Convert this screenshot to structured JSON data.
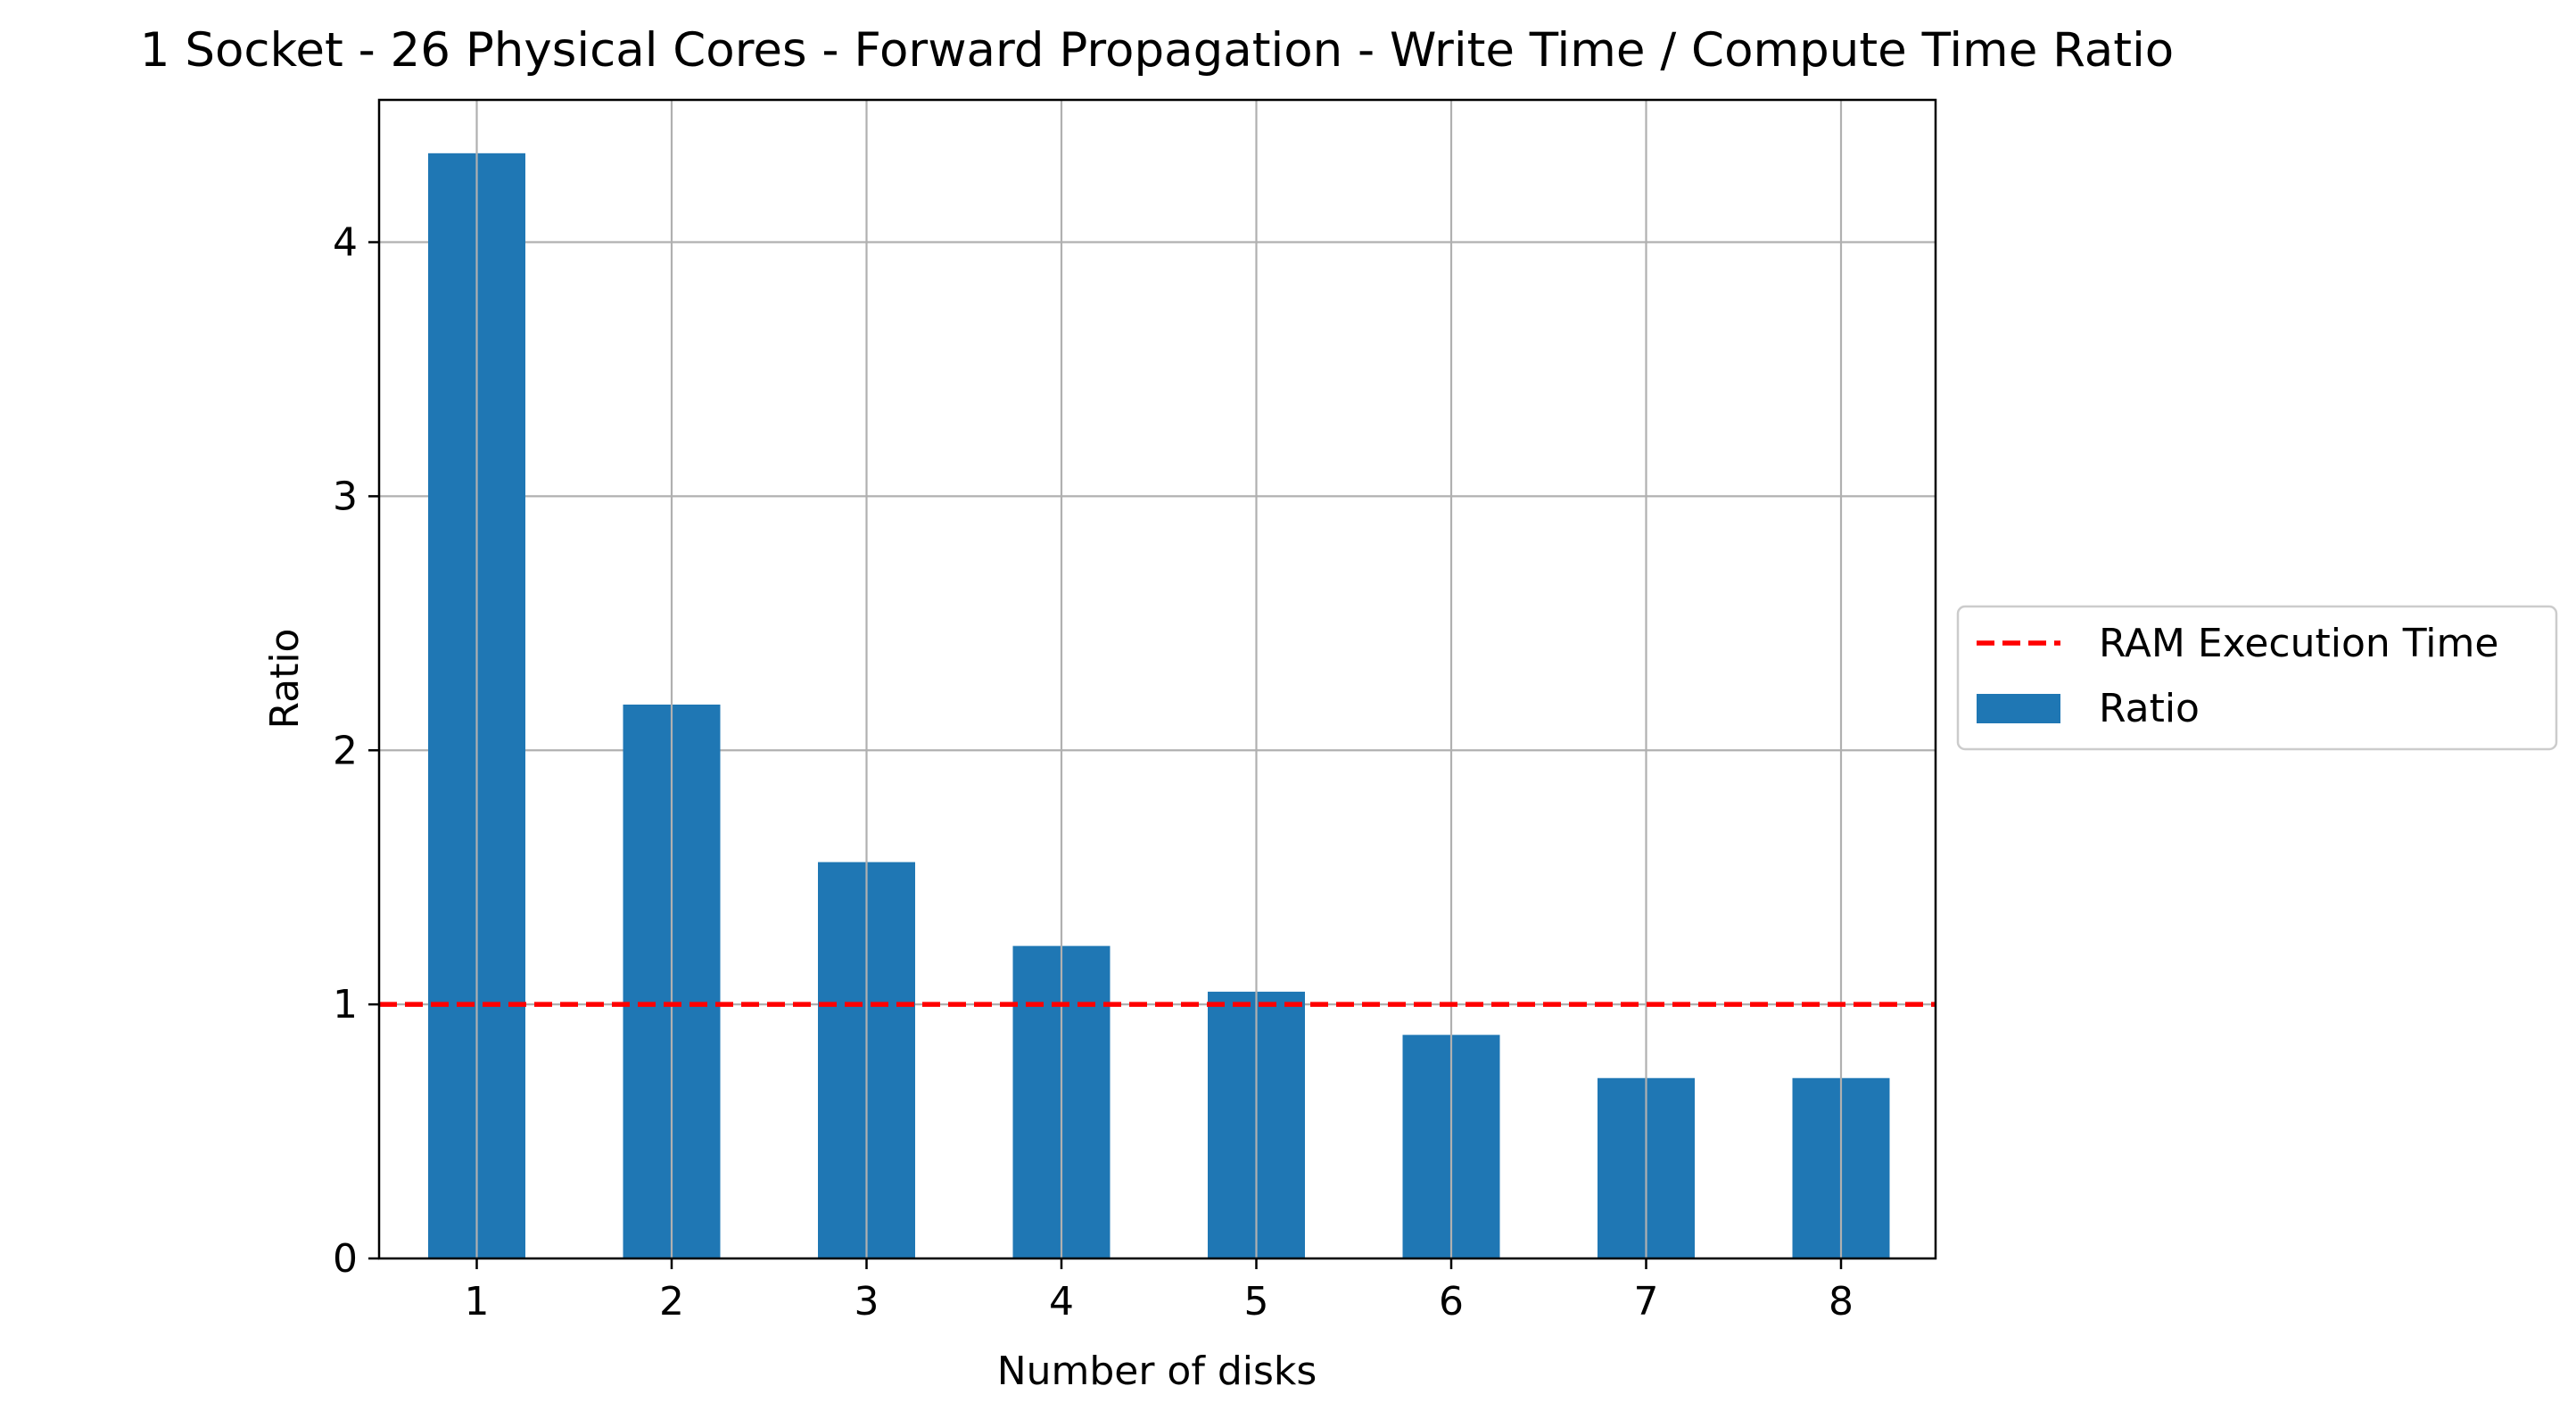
{
  "chart_data": {
    "type": "bar",
    "title": "1 Socket - 26 Physical Cores - Forward Propagation - Write Time / Compute Time Ratio",
    "xlabel": "Number of disks",
    "ylabel": "Ratio",
    "categories": [
      "1",
      "2",
      "3",
      "4",
      "5",
      "6",
      "7",
      "8"
    ],
    "series": [
      {
        "name": "Ratio",
        "color": "#1f77b4",
        "values": [
          4.35,
          2.18,
          1.56,
          1.23,
          1.05,
          0.88,
          0.71,
          0.71
        ]
      }
    ],
    "reference_lines": [
      {
        "name": "RAM Execution Time",
        "y": 1,
        "color": "#ff0000",
        "style": "dashed"
      }
    ],
    "ylim": [
      0,
      4.56
    ],
    "yticks": [
      0,
      1,
      2,
      3,
      4
    ],
    "grid": true,
    "legend": {
      "position": "right-outside",
      "entries": [
        "RAM Execution Time",
        "Ratio"
      ]
    }
  }
}
